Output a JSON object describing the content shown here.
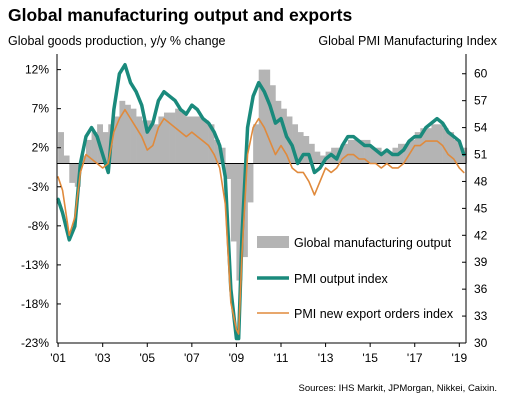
{
  "chart_data": {
    "type": "line",
    "title": "Global manufacturing output and exports",
    "ylabel_left": "Global goods production, y/y % change",
    "ylabel_right": "Global PMI Manufacturing Index",
    "source": "Sources: IHS Markit, JPMorgan, Nikkei, Caixin.",
    "x_range": [
      2000.95,
      2019.3
    ],
    "x_ticks": [
      {
        "value": 2001,
        "label": "'01"
      },
      {
        "value": 2003,
        "label": "'03"
      },
      {
        "value": 2005,
        "label": "'05"
      },
      {
        "value": 2007,
        "label": "'07"
      },
      {
        "value": 2009,
        "label": "'09"
      },
      {
        "value": 2011,
        "label": "'11"
      },
      {
        "value": 2013,
        "label": "'13"
      },
      {
        "value": 2015,
        "label": "'15"
      },
      {
        "value": 2017,
        "label": "'17"
      },
      {
        "value": 2019,
        "label": "'19"
      }
    ],
    "y_left": {
      "range": [
        -23,
        14
      ],
      "ticks": [
        {
          "value": 12,
          "label": "12%"
        },
        {
          "value": 7,
          "label": "7%"
        },
        {
          "value": 2,
          "label": "2%"
        },
        {
          "value": -3,
          "label": "-3%"
        },
        {
          "value": -8,
          "label": "-8%"
        },
        {
          "value": -13,
          "label": "-13%"
        },
        {
          "value": -18,
          "label": "-18%"
        },
        {
          "value": -23,
          "label": "-23%"
        }
      ]
    },
    "y_right": {
      "range": [
        30,
        62.2
      ],
      "ticks": [
        {
          "value": 60,
          "label": "60"
        },
        {
          "value": 57,
          "label": "57"
        },
        {
          "value": 54,
          "label": "54"
        },
        {
          "value": 51,
          "label": "51"
        },
        {
          "value": 48,
          "label": "48"
        },
        {
          "value": 45,
          "label": "45"
        },
        {
          "value": 42,
          "label": "42"
        },
        {
          "value": 39,
          "label": "39"
        },
        {
          "value": 36,
          "label": "36"
        },
        {
          "value": 33,
          "label": "33"
        },
        {
          "value": 30,
          "label": "30"
        }
      ]
    },
    "zero_line_right": 50,
    "grid": false,
    "series": [
      {
        "name": "Global manufacturing output",
        "axis": "left",
        "style": "area",
        "color": "#b4b4b4",
        "x": [
          2001.0,
          2001.25,
          2001.5,
          2001.75,
          2002.0,
          2002.25,
          2002.5,
          2002.75,
          2003.0,
          2003.25,
          2003.5,
          2003.75,
          2004.0,
          2004.25,
          2004.5,
          2004.75,
          2005.0,
          2005.25,
          2005.5,
          2005.75,
          2006.0,
          2006.25,
          2006.5,
          2006.75,
          2007.0,
          2007.25,
          2007.5,
          2007.75,
          2008.0,
          2008.25,
          2008.5,
          2008.75,
          2009.0,
          2009.25,
          2009.5,
          2009.75,
          2010.0,
          2010.25,
          2010.5,
          2010.75,
          2011.0,
          2011.25,
          2011.5,
          2011.75,
          2012.0,
          2012.25,
          2012.5,
          2012.75,
          2013.0,
          2013.25,
          2013.5,
          2013.75,
          2014.0,
          2014.25,
          2014.5,
          2014.75,
          2015.0,
          2015.25,
          2015.5,
          2015.75,
          2016.0,
          2016.25,
          2016.5,
          2016.75,
          2017.0,
          2017.25,
          2017.5,
          2017.75,
          2018.0,
          2018.25,
          2018.5,
          2018.75,
          2019.0,
          2019.2
        ],
        "values": [
          4,
          1,
          -2.5,
          -3,
          1,
          3,
          4,
          5,
          4,
          5,
          6,
          8,
          7.5,
          7,
          6,
          5.5,
          5.5,
          5,
          6,
          6.5,
          6.5,
          7,
          6.5,
          6,
          6,
          6,
          5.5,
          5,
          3,
          2,
          -2,
          -10,
          -15,
          -12,
          -5,
          5,
          12,
          12,
          10,
          8,
          7,
          6,
          5,
          4,
          3.5,
          2.5,
          1.5,
          1,
          1.5,
          2,
          2,
          2.5,
          3,
          3,
          3,
          3,
          2,
          2,
          1.5,
          1.5,
          2,
          2.5,
          2.5,
          3,
          4,
          4.5,
          4.5,
          5,
          5,
          4.5,
          4,
          3,
          2,
          2
        ]
      },
      {
        "name": "PMI output index",
        "axis": "right",
        "style": "line",
        "color": "#1a8a7c",
        "x": [
          2001.0,
          2001.2,
          2001.5,
          2001.75,
          2002.0,
          2002.25,
          2002.5,
          2002.75,
          2003.0,
          2003.25,
          2003.5,
          2003.75,
          2004.0,
          2004.25,
          2004.5,
          2004.75,
          2005.0,
          2005.25,
          2005.5,
          2005.75,
          2006.0,
          2006.25,
          2006.5,
          2006.75,
          2007.0,
          2007.25,
          2007.5,
          2007.75,
          2008.0,
          2008.25,
          2008.5,
          2008.75,
          2009.0,
          2009.1,
          2009.25,
          2009.5,
          2009.75,
          2010.0,
          2010.25,
          2010.5,
          2010.75,
          2011.0,
          2011.25,
          2011.5,
          2011.75,
          2012.0,
          2012.25,
          2012.5,
          2012.75,
          2013.0,
          2013.25,
          2013.5,
          2013.75,
          2014.0,
          2014.25,
          2014.5,
          2014.75,
          2015.0,
          2015.25,
          2015.5,
          2015.75,
          2016.0,
          2016.25,
          2016.5,
          2016.75,
          2017.0,
          2017.25,
          2017.5,
          2017.75,
          2018.0,
          2018.25,
          2018.5,
          2018.75,
          2019.0,
          2019.2
        ],
        "values": [
          46,
          44.5,
          41.5,
          43,
          50,
          53,
          54,
          53,
          51,
          49,
          56,
          60,
          61,
          59,
          58,
          56.5,
          53.5,
          54.5,
          57,
          58,
          57.5,
          57,
          56,
          55.5,
          56.5,
          56,
          55,
          54.5,
          53.5,
          52,
          48.5,
          36,
          30.5,
          30.5,
          42,
          54,
          57.5,
          59,
          58,
          56.5,
          54.5,
          55,
          53,
          52,
          50,
          51,
          51,
          49,
          49.5,
          50.5,
          51,
          50.5,
          52,
          53,
          53,
          52.5,
          52,
          52,
          51.5,
          51,
          51.5,
          51,
          51,
          51.5,
          52.5,
          53,
          53,
          54,
          54.5,
          55,
          54.5,
          53.5,
          53,
          52.5,
          51
        ]
      },
      {
        "name": "PMI new export orders index",
        "axis": "right",
        "style": "line",
        "color": "#e08a3c",
        "x": [
          2001.0,
          2001.2,
          2001.5,
          2001.75,
          2002.0,
          2002.25,
          2002.5,
          2002.75,
          2003.0,
          2003.25,
          2003.5,
          2003.75,
          2004.0,
          2004.25,
          2004.5,
          2004.75,
          2005.0,
          2005.25,
          2005.5,
          2005.75,
          2006.0,
          2006.25,
          2006.5,
          2006.75,
          2007.0,
          2007.25,
          2007.5,
          2007.75,
          2008.0,
          2008.25,
          2008.5,
          2008.75,
          2009.0,
          2009.1,
          2009.25,
          2009.5,
          2009.75,
          2010.0,
          2010.25,
          2010.5,
          2010.75,
          2011.0,
          2011.25,
          2011.5,
          2011.75,
          2012.0,
          2012.25,
          2012.5,
          2012.75,
          2013.0,
          2013.25,
          2013.5,
          2013.75,
          2014.0,
          2014.25,
          2014.5,
          2014.75,
          2015.0,
          2015.25,
          2015.5,
          2015.75,
          2016.0,
          2016.25,
          2016.5,
          2016.75,
          2017.0,
          2017.25,
          2017.5,
          2017.75,
          2018.0,
          2018.25,
          2018.5,
          2018.75,
          2019.0,
          2019.2
        ],
        "values": [
          48.5,
          47,
          42,
          44,
          49,
          51,
          50.5,
          50,
          49.5,
          50,
          53.5,
          55,
          56,
          55,
          54,
          53,
          51.5,
          52,
          54,
          55,
          54.5,
          54,
          53.5,
          53,
          53.5,
          53,
          52.5,
          52,
          51,
          49.5,
          45.5,
          34.5,
          31.5,
          31,
          40,
          51,
          54,
          55,
          54,
          52.5,
          51,
          52,
          51,
          49.5,
          49,
          49,
          48,
          46.5,
          48,
          49.5,
          49,
          49.5,
          50.5,
          51,
          51,
          50.5,
          50.5,
          50,
          50,
          49.5,
          50,
          49.5,
          49.5,
          50,
          51,
          52,
          52,
          52.5,
          52.5,
          52.5,
          52,
          51,
          50.5,
          49.5,
          49
        ]
      }
    ],
    "legend": {
      "placement": "bottom-right"
    }
  }
}
